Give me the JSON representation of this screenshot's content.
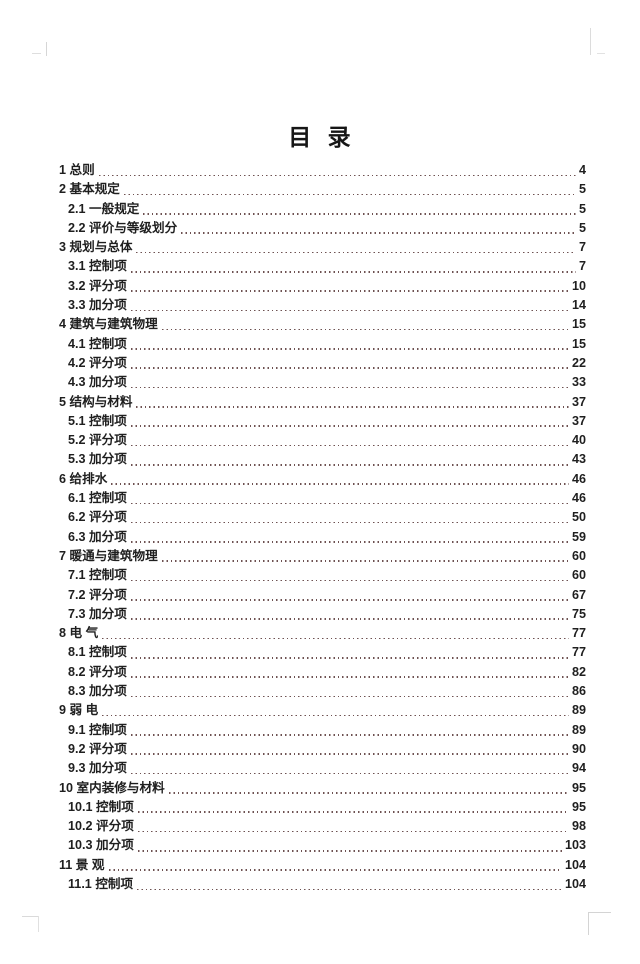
{
  "document": {
    "title": "目 录",
    "colors": {
      "text": "#1f1f1f",
      "leader_dots": "#6e5252",
      "background": "#ffffff"
    },
    "toc_entries": [
      {
        "level": 1,
        "label": "1 总则",
        "page": "4"
      },
      {
        "level": 1,
        "label": "2 基本规定",
        "page": "5"
      },
      {
        "level": 2,
        "label": "2.1 一般规定",
        "page": "5"
      },
      {
        "level": 2,
        "label": "2.2 评价与等级划分",
        "page": "5"
      },
      {
        "level": 1,
        "label": "3 规划与总体",
        "page": "7"
      },
      {
        "level": 2,
        "label": "3.1 控制项",
        "page": "7"
      },
      {
        "level": 2,
        "label": "3.2 评分项",
        "page": "10"
      },
      {
        "level": 2,
        "label": "3.3 加分项",
        "page": "14"
      },
      {
        "level": 1,
        "label": "4 建筑与建筑物理",
        "page": "15"
      },
      {
        "level": 2,
        "label": "4.1 控制项",
        "page": "15"
      },
      {
        "level": 2,
        "label": "4.2 评分项",
        "page": "22"
      },
      {
        "level": 2,
        "label": "4.3 加分项",
        "page": "33"
      },
      {
        "level": 1,
        "label": "5 结构与材料",
        "page": "37"
      },
      {
        "level": 2,
        "label": "5.1 控制项",
        "page": "37"
      },
      {
        "level": 2,
        "label": "5.2 评分项",
        "page": "40"
      },
      {
        "level": 2,
        "label": "5.3 加分项",
        "page": "43"
      },
      {
        "level": 1,
        "label": "6 给排水",
        "page": "46"
      },
      {
        "level": 2,
        "label": "6.1 控制项",
        "page": "46"
      },
      {
        "level": 2,
        "label": "6.2 评分项",
        "page": "50"
      },
      {
        "level": 2,
        "label": "6.3 加分项",
        "page": "59"
      },
      {
        "level": 1,
        "label": "7 暖通与建筑物理",
        "page": "60"
      },
      {
        "level": 2,
        "label": "7.1 控制项",
        "page": "60"
      },
      {
        "level": 2,
        "label": "7.2 评分项",
        "page": "67"
      },
      {
        "level": 2,
        "label": "7.3 加分项",
        "page": "75"
      },
      {
        "level": 1,
        "label": "8 电 气",
        "page": "77"
      },
      {
        "level": 2,
        "label": "8.1 控制项",
        "page": "77"
      },
      {
        "level": 2,
        "label": "8.2 评分项",
        "page": "82"
      },
      {
        "level": 2,
        "label": "8.3 加分项",
        "page": "86"
      },
      {
        "level": 1,
        "label": "9 弱 电",
        "page": "89"
      },
      {
        "level": 2,
        "label": "9.1 控制项",
        "page": "89"
      },
      {
        "level": 2,
        "label": "9.2 评分项",
        "page": "90"
      },
      {
        "level": 2,
        "label": "9.3 加分项",
        "page": "94"
      },
      {
        "level": 1,
        "label": "10 室内装修与材料",
        "page": "95"
      },
      {
        "level": 2,
        "label": "10.1 控制项",
        "page": "95"
      },
      {
        "level": 2,
        "label": "10.2 评分项",
        "page": "98"
      },
      {
        "level": 2,
        "label": "10.3 加分项",
        "page": "103"
      },
      {
        "level": 1,
        "label": "11 景 观",
        "page": "104"
      },
      {
        "level": 2,
        "label": "11.1 控制项",
        "page": "104"
      }
    ]
  }
}
